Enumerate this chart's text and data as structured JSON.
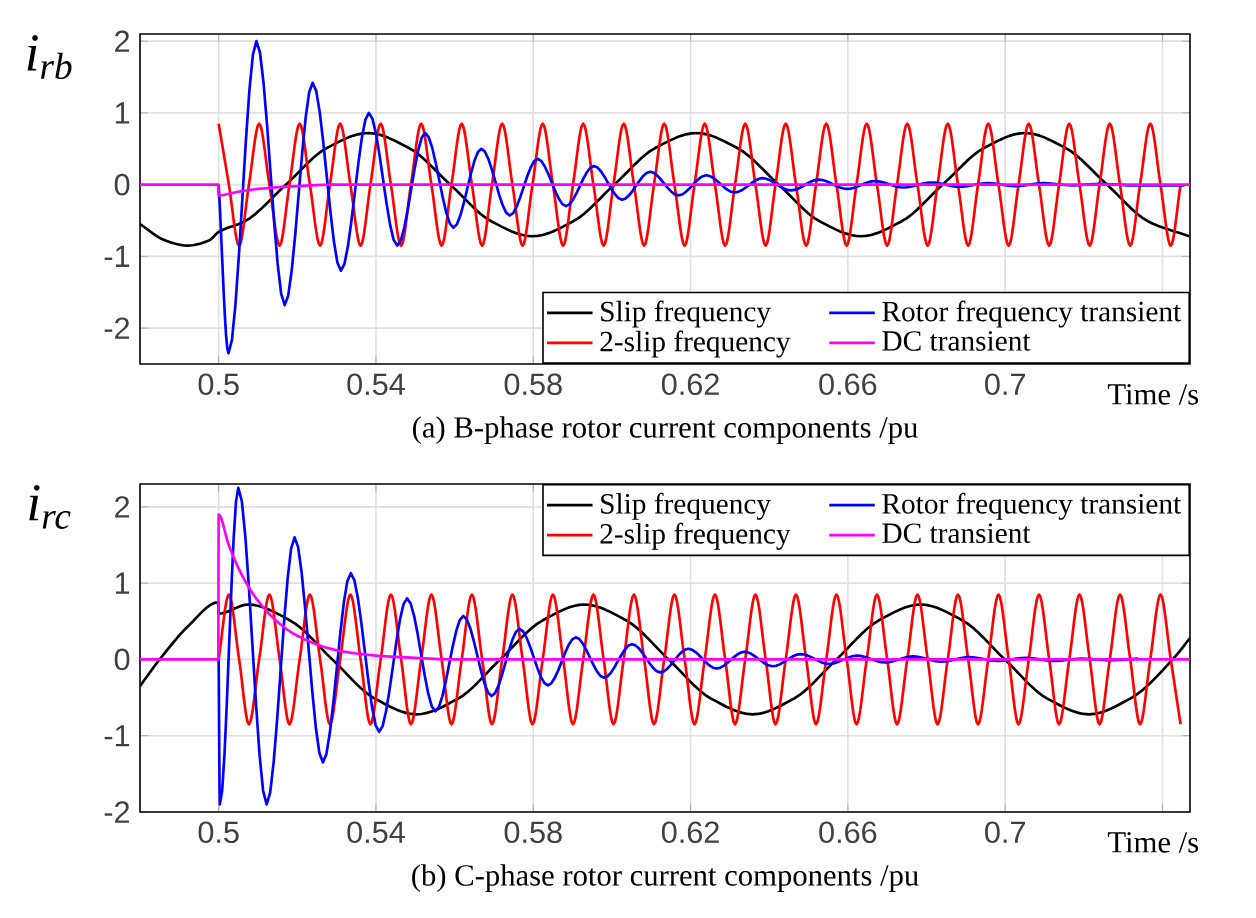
{
  "chart_data": [
    {
      "type": "line",
      "ylabel": "i$_{rb}$",
      "xlabel": "Time /s",
      "annotations": [
        "(a) B-phase rotor current components /pu"
      ],
      "xlim": [
        0.48,
        0.747
      ],
      "ylim": [
        -2.5,
        2.1
      ],
      "xticks": [
        0.5,
        0.54,
        0.58,
        0.62,
        0.66,
        0.7,
        {
          "value": 0.74,
          "label": null
        }
      ],
      "yticks": [
        -2,
        -1,
        0,
        1,
        2
      ],
      "grid": true,
      "legend": "bottom right",
      "series": [
        {
          "name": "Slip frequency",
          "color": "#000000",
          "x": [
            0.48,
            0.4865,
            0.492,
            0.4975,
            0.5,
            0.5067,
            0.5171,
            0.5275,
            0.538,
            0.5484,
            0.5589,
            0.5693,
            0.5798,
            0.5902,
            0.6006,
            0.611,
            0.6215,
            0.6319,
            0.6424,
            0.6528,
            0.6633,
            0.6737,
            0.6841,
            0.6946,
            0.705,
            0.7154,
            0.7259,
            0.7363,
            0.7468
          ],
          "values": [
            -0.55,
            -0.78,
            -0.85,
            -0.78,
            -0.66,
            -0.51,
            0,
            0.51,
            0.72,
            0.51,
            0,
            -0.51,
            -0.72,
            -0.51,
            0,
            0.51,
            0.72,
            0.51,
            0,
            -0.51,
            -0.72,
            -0.51,
            0,
            0.51,
            0.72,
            0.51,
            0,
            -0.51,
            -0.72
          ]
        },
        {
          "name": "2-slip frequency",
          "color": "#ff0000",
          "x": [
            0.5,
            0.5026,
            0.5052,
            0.5077,
            0.5103,
            0.5129,
            0.5155,
            0.518,
            0.5206,
            0.5232,
            0.5258,
            0.5283,
            0.5309,
            0.5335,
            0.5361,
            0.5386,
            0.5412,
            0.5438,
            0.5464,
            0.5489,
            0.5515,
            0.5541,
            0.5567,
            0.5592,
            0.5618,
            0.5644,
            0.567,
            0.5695,
            0.5721,
            0.5747,
            0.5773,
            0.5798,
            0.5824,
            0.585,
            0.5876,
            0.5901,
            0.5927,
            0.5953,
            0.5979,
            0.6004,
            0.603,
            0.6056,
            0.6082,
            0.6107,
            0.6133,
            0.6159,
            0.6185,
            0.621,
            0.6236,
            0.6262,
            0.6288,
            0.6313,
            0.6339,
            0.6365,
            0.6391,
            0.6416,
            0.6442,
            0.6468,
            0.6494,
            0.6519,
            0.6545,
            0.6571,
            0.6597,
            0.6622,
            0.6648,
            0.6674,
            0.67,
            0.6725,
            0.6751,
            0.6777,
            0.6803,
            0.6828,
            0.6854,
            0.688,
            0.6906,
            0.6931,
            0.6957,
            0.6983,
            0.7009,
            0.7034,
            0.706,
            0.7086,
            0.7112,
            0.7137,
            0.7163,
            0.7189,
            0.7215,
            0.724,
            0.7266,
            0.7292,
            0.7318,
            0.7343,
            0.7369,
            0.7395,
            0.7421,
            0.7446
          ],
          "values": [
            0.85,
            0,
            -0.85,
            0,
            0.85,
            0,
            -0.85,
            0,
            0.85,
            0,
            -0.85,
            0,
            0.85,
            0,
            -0.85,
            0,
            0.85,
            0,
            -0.85,
            0,
            0.85,
            0,
            -0.85,
            0,
            0.85,
            0,
            -0.85,
            0,
            0.85,
            0,
            -0.85,
            0,
            0.85,
            0,
            -0.85,
            0,
            0.85,
            0,
            -0.85,
            0,
            0.85,
            0,
            -0.85,
            0,
            0.85,
            0,
            -0.85,
            0,
            0.85,
            0,
            -0.85,
            0,
            0.85,
            0,
            -0.85,
            0,
            0.85,
            0,
            -0.85,
            0,
            0.85,
            0,
            -0.85,
            0,
            0.85,
            0,
            -0.85,
            0,
            0.85,
            0,
            -0.85,
            0,
            0.85,
            0,
            -0.85,
            0,
            0.85,
            0,
            -0.85,
            0,
            0.85,
            0,
            -0.85,
            0,
            0.85,
            0,
            -0.85,
            0,
            0.85,
            0,
            -0.85,
            0,
            0.85,
            0,
            -0.85,
            0
          ]
        },
        {
          "name": "Rotor frequency transient",
          "color": "#0000ff",
          "x": [
            0.5,
            0.5025,
            0.5096,
            0.5168,
            0.5239,
            0.5311,
            0.5382,
            0.5454,
            0.5525,
            0.5597,
            0.5668,
            0.574,
            0.5811,
            0.5883,
            0.5954,
            0.6026,
            0.6097,
            0.6169,
            0.624,
            0.6312,
            0.6383,
            0.6455,
            0.6526,
            0.6598,
            0.6669,
            0.6741,
            0.6812,
            0.6884,
            0.6955,
            0.7027,
            0.7098,
            0.717,
            0.7241,
            0.7313,
            0.7384,
            0.7456
          ],
          "values": [
            0,
            -2.35,
            2.0,
            -1.68,
            1.42,
            -1.2,
            1.0,
            -0.85,
            0.72,
            -0.6,
            0.5,
            -0.43,
            0.36,
            -0.3,
            0.26,
            -0.21,
            0.18,
            -0.15,
            0.13,
            -0.11,
            0.09,
            -0.08,
            0.07,
            -0.06,
            0.05,
            -0.04,
            0.03,
            -0.03,
            0.02,
            -0.02,
            0.02,
            -0.01,
            0.01,
            -0.01,
            null,
            -0.01
          ]
        },
        {
          "name": "DC transient",
          "color": "#ff00ff",
          "x": [
            0.48,
            0.4999,
            0.5,
            0.505,
            0.51,
            0.52,
            0.53,
            0.747
          ],
          "values": [
            0,
            0,
            -0.15,
            -0.1,
            -0.06,
            -0.02,
            0,
            0
          ]
        }
      ]
    },
    {
      "type": "line",
      "ylabel": "i$_{rc}$",
      "xlabel": "Time /s",
      "annotations": [
        "(b) C-phase rotor current components /pu"
      ],
      "xlim": [
        0.48,
        0.747
      ],
      "ylim": [
        -2,
        2.3
      ],
      "xticks": [
        0.5,
        0.54,
        0.58,
        0.62,
        0.66,
        0.7,
        {
          "value": 0.74,
          "label": null
        }
      ],
      "yticks": [
        -2,
        -1,
        0,
        1,
        2
      ],
      "grid": true,
      "legend": "top right",
      "series": [
        {
          "name": "Slip frequency",
          "color": "#000000",
          "x": [
            0.48,
            0.485,
            0.4925,
            0.4999,
            0.5,
            0.5075,
            0.5182,
            0.5289,
            0.5396,
            0.5503,
            0.561,
            0.5716,
            0.5823,
            0.593,
            0.6037,
            0.6144,
            0.6251,
            0.6358,
            0.6464,
            0.6571,
            0.6678,
            0.6785,
            0.6892,
            0.6999,
            0.7106,
            0.7213,
            0.7319,
            0.7426,
            0.747
          ],
          "values": [
            -0.35,
            0,
            0.45,
            0.75,
            0.6,
            0.72,
            0.51,
            0,
            -0.51,
            -0.72,
            -0.51,
            0,
            0.51,
            0.72,
            0.51,
            0,
            -0.51,
            -0.72,
            -0.51,
            0,
            0.51,
            0.72,
            0.51,
            0,
            -0.51,
            -0.72,
            -0.51,
            0,
            0.28
          ]
        },
        {
          "name": "2-slip frequency",
          "color": "#ff0000",
          "x": [
            0.5,
            0.5026,
            0.5052,
            0.5077,
            0.5103,
            0.5129,
            0.5155,
            0.518,
            0.5206,
            0.5232,
            0.5258,
            0.5283,
            0.5309,
            0.5335,
            0.5361,
            0.5386,
            0.5412,
            0.5438,
            0.5464,
            0.5489,
            0.5515,
            0.5541,
            0.5567,
            0.5592,
            0.5618,
            0.5644,
            0.567,
            0.5695,
            0.5721,
            0.5747,
            0.5773,
            0.5798,
            0.5824,
            0.585,
            0.5876,
            0.5901,
            0.5927,
            0.5953,
            0.5979,
            0.6004,
            0.603,
            0.6056,
            0.6082,
            0.6107,
            0.6133,
            0.6159,
            0.6185,
            0.621,
            0.6236,
            0.6262,
            0.6288,
            0.6313,
            0.6339,
            0.6365,
            0.6391,
            0.6416,
            0.6442,
            0.6468,
            0.6494,
            0.6519,
            0.6545,
            0.6571,
            0.6597,
            0.6622,
            0.6648,
            0.6674,
            0.67,
            0.6725,
            0.6751,
            0.6777,
            0.6803,
            0.6828,
            0.6854,
            0.688,
            0.6906,
            0.6931,
            0.6957,
            0.6983,
            0.7009,
            0.7034,
            0.706,
            0.7086,
            0.7112,
            0.7137,
            0.7163,
            0.7189,
            0.7215,
            0.724,
            0.7266,
            0.7292,
            0.7318,
            0.7343,
            0.7369,
            0.7395,
            0.7421,
            0.7446
          ],
          "values": [
            0,
            0.85,
            0,
            -0.85,
            0,
            0.85,
            0,
            -0.85,
            0,
            0.85,
            0,
            -0.85,
            0,
            0.85,
            0,
            -0.85,
            0,
            0.85,
            0,
            -0.85,
            0,
            0.85,
            0,
            -0.85,
            0,
            0.85,
            0,
            -0.85,
            0,
            0.85,
            0,
            -0.85,
            0,
            0.85,
            0,
            -0.85,
            0,
            0.85,
            0,
            -0.85,
            0,
            0.85,
            0,
            -0.85,
            0,
            0.85,
            0,
            -0.85,
            0,
            0.85,
            0,
            -0.85,
            0,
            0.85,
            0,
            -0.85,
            0,
            0.85,
            0,
            -0.85,
            0,
            0.85,
            0,
            -0.85,
            0,
            0.85,
            0,
            -0.85,
            0,
            0.85,
            0,
            -0.85,
            0,
            0.85,
            0,
            -0.85,
            0,
            0.85,
            0,
            -0.85,
            0,
            0.85,
            0,
            -0.85,
            0,
            0.85,
            0,
            -0.85,
            0,
            0.85,
            0,
            -0.85,
            0,
            0.85,
            0,
            -0.85
          ]
        },
        {
          "name": "Rotor frequency transient",
          "color": "#0000ff",
          "x": [
            0.5,
            0.5003,
            0.505,
            0.5122,
            0.5193,
            0.5265,
            0.5336,
            0.5408,
            0.5479,
            0.5551,
            0.5622,
            0.5694,
            0.5765,
            0.5837,
            0.5908,
            0.598,
            0.6051,
            0.6123,
            0.6194,
            0.6266,
            0.6337,
            0.6409,
            0.648,
            0.6552,
            0.6623,
            0.6695,
            0.6766,
            0.6838,
            0.6909,
            0.6981,
            0.7052,
            0.7124,
            0.7195,
            0.7267,
            0.7338
          ],
          "values": [
            0,
            -1.9,
            2.25,
            -1.9,
            1.6,
            -1.35,
            1.13,
            -0.95,
            0.8,
            -0.68,
            0.57,
            -0.48,
            0.4,
            -0.34,
            0.29,
            -0.24,
            0.2,
            -0.17,
            0.14,
            -0.12,
            0.1,
            -0.09,
            0.07,
            -0.06,
            0.05,
            -0.04,
            0.04,
            -0.03,
            0.03,
            -0.02,
            0.02,
            -0.02,
            0.01,
            -0.01,
            0.01
          ]
        },
        {
          "name": "DC transient",
          "color": "#ff00ff",
          "x": [
            0.48,
            0.4999,
            0.5,
            0.5025,
            0.505,
            0.5075,
            0.51,
            0.515,
            0.52,
            0.53,
            0.54,
            0.55,
            0.56,
            0.747
          ],
          "values": [
            0,
            0,
            1.9,
            1.51,
            1.2,
            0.96,
            0.77,
            0.49,
            0.31,
            0.12,
            0.05,
            0.02,
            0,
            0
          ]
        }
      ]
    }
  ]
}
